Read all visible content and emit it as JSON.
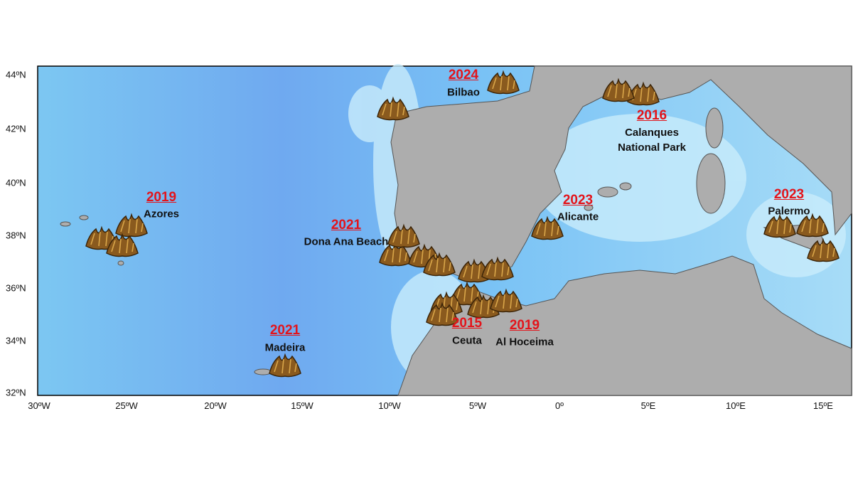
{
  "map": {
    "lat_labels": [
      "44ºN",
      "42ºN",
      "40ºN",
      "38ºN",
      "36ºN",
      "34ºN",
      "32ºN"
    ],
    "lon_labels": [
      "30ºW",
      "25ºW",
      "20ºW",
      "15ºW",
      "10ºW",
      "5ºW",
      "0º",
      "5ºE",
      "10ºE",
      "15ºE"
    ],
    "sites": [
      {
        "year": "2019",
        "name": "Azores"
      },
      {
        "year": "2021",
        "name": "Dona Ana Beach"
      },
      {
        "year": "2021",
        "name": "Madeira"
      },
      {
        "year": "2024",
        "name": "Bilbao"
      },
      {
        "year": "2016",
        "name": "Calanques National Park"
      },
      {
        "year": "2023",
        "name": "Alicante"
      },
      {
        "year": "2015",
        "name": "Ceuta"
      },
      {
        "year": "2019",
        "name": "Al Hoceima"
      },
      {
        "year": "2023",
        "name": "Palermo"
      }
    ]
  }
}
